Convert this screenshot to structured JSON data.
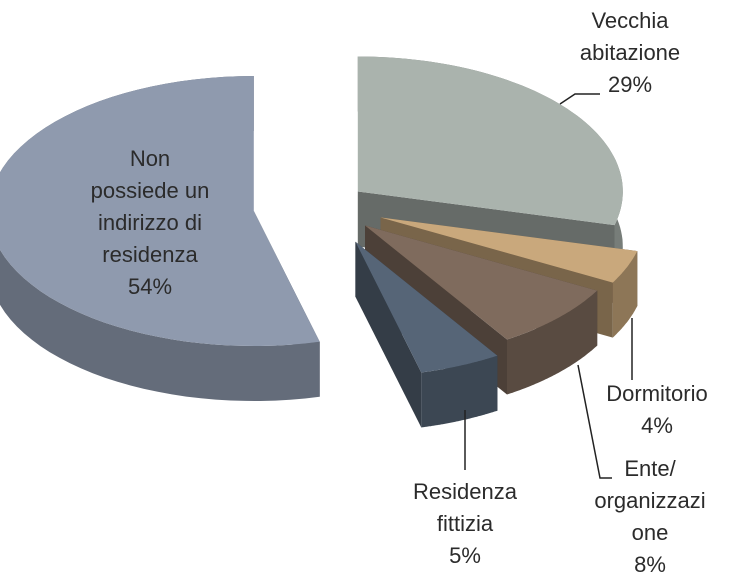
{
  "chart_data": {
    "type": "pie",
    "categories": [
      [
        "Vecchia",
        "abitazione"
      ],
      [
        "Dormitorio"
      ],
      [
        "Ente/",
        "organizzazi",
        "one"
      ],
      [
        "Residenza",
        "fittizia"
      ],
      [
        "Non",
        "possiede un",
        "indirizzo di",
        "residenza"
      ]
    ],
    "values": [
      29,
      4,
      8,
      5,
      54
    ],
    "value_labels": [
      "29%",
      "4%",
      "8%",
      "5%",
      "54%"
    ],
    "colors": [
      "#aab3ad",
      "#c9a87c",
      "#7f6b5d",
      "#566577",
      "#8f9aae"
    ]
  }
}
